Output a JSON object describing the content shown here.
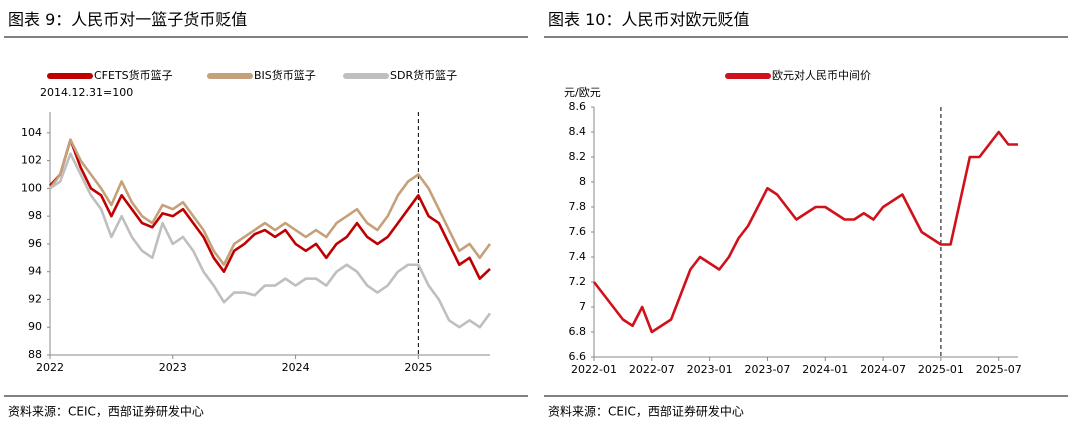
{
  "chart_data": [
    {
      "type": "line",
      "title": "图表 9：人民币对一篮子货币贬值",
      "y_label": "2014.12.31=100",
      "source": "资料来源：CEIC，西部证券研发中心",
      "categories": [
        "2022",
        null,
        null,
        null,
        null,
        null,
        null,
        null,
        null,
        null,
        null,
        null,
        "2023",
        null,
        null,
        null,
        null,
        null,
        null,
        null,
        null,
        null,
        null,
        null,
        "2024",
        null,
        null,
        null,
        null,
        null,
        null,
        null,
        null,
        null,
        null,
        null,
        "2025",
        null,
        null,
        null,
        null,
        null,
        null,
        null
      ],
      "series": [
        {
          "name": "CFETS货币篮子",
          "color": "#c00000",
          "values": [
            100.2,
            101.0,
            103.5,
            101.5,
            100,
            99.5,
            98,
            99.5,
            98.5,
            97.5,
            97.2,
            98.2,
            98,
            98.5,
            97.5,
            96.5,
            95,
            94,
            95.5,
            96,
            96.7,
            97,
            96.5,
            97,
            96,
            95.5,
            96,
            95,
            96,
            96.5,
            97.5,
            96.5,
            96,
            96.5,
            97.5,
            98.5,
            99.5,
            98,
            97.5,
            96,
            94.5,
            95,
            93.5,
            94.2
          ]
        },
        {
          "name": "BIS货币篮子",
          "color": "#c4a17a",
          "values": [
            100,
            101,
            103.5,
            102,
            101,
            100,
            98.8,
            100.5,
            99,
            98,
            97.5,
            98.8,
            98.5,
            99,
            98,
            97,
            95.5,
            94.5,
            96,
            96.5,
            97,
            97.5,
            97,
            97.5,
            97,
            96.5,
            97,
            96.5,
            97.5,
            98,
            98.5,
            97.5,
            97,
            98,
            99.5,
            100.5,
            101,
            100,
            98.5,
            97,
            95.5,
            96,
            95,
            96
          ]
        },
        {
          "name": "SDR货币篮子",
          "color": "#bfbfbf",
          "values": [
            100,
            100.5,
            102.5,
            101,
            99.5,
            98.5,
            96.5,
            98,
            96.5,
            95.5,
            95,
            97.5,
            96,
            96.5,
            95.5,
            94,
            93,
            91.8,
            92.5,
            92.5,
            92.3,
            93,
            93,
            93.5,
            93,
            93.5,
            93.5,
            93,
            94,
            94.5,
            94,
            93,
            92.5,
            93,
            94,
            94.5,
            94.5,
            93,
            92,
            90.5,
            90,
            90.5,
            90,
            91
          ]
        }
      ],
      "ylim": [
        88,
        105.5
      ],
      "yticks": [
        88,
        90,
        92,
        94,
        96,
        98,
        100,
        102,
        104
      ]
    },
    {
      "type": "line",
      "title": "图表 10：人民币对欧元贬值",
      "y_label": "元/欧元",
      "source": "资料来源：CEIC，西部证券研发中心",
      "categories": [
        "2022-01",
        null,
        null,
        null,
        null,
        null,
        "2022-07",
        null,
        null,
        null,
        null,
        null,
        "2023-01",
        null,
        null,
        null,
        null,
        null,
        "2023-07",
        null,
        null,
        null,
        null,
        null,
        "2024-01",
        null,
        null,
        null,
        null,
        null,
        "2024-07",
        null,
        null,
        null,
        null,
        null,
        "2025-01",
        null,
        null,
        null,
        null,
        null,
        "2025-07",
        null,
        null
      ],
      "series": [
        {
          "name": "欧元对人民币中间价",
          "color": "#d0111b",
          "values": [
            7.2,
            7.1,
            7.0,
            6.9,
            6.85,
            7.0,
            6.8,
            6.85,
            6.9,
            7.1,
            7.3,
            7.4,
            7.35,
            7.3,
            7.4,
            7.55,
            7.65,
            7.8,
            7.95,
            7.9,
            7.8,
            7.7,
            7.75,
            7.8,
            7.8,
            7.75,
            7.7,
            7.7,
            7.75,
            7.7,
            7.8,
            7.85,
            7.9,
            7.75,
            7.6,
            7.55,
            7.5,
            7.5,
            7.85,
            8.2,
            8.2,
            8.3,
            8.4,
            8.3,
            8.3
          ]
        }
      ],
      "ylim": [
        6.6,
        8.6
      ],
      "yticks": [
        6.6,
        6.8,
        7,
        7.2,
        7.4,
        7.6,
        7.8,
        8,
        8.2,
        8.4,
        8.6
      ]
    }
  ]
}
